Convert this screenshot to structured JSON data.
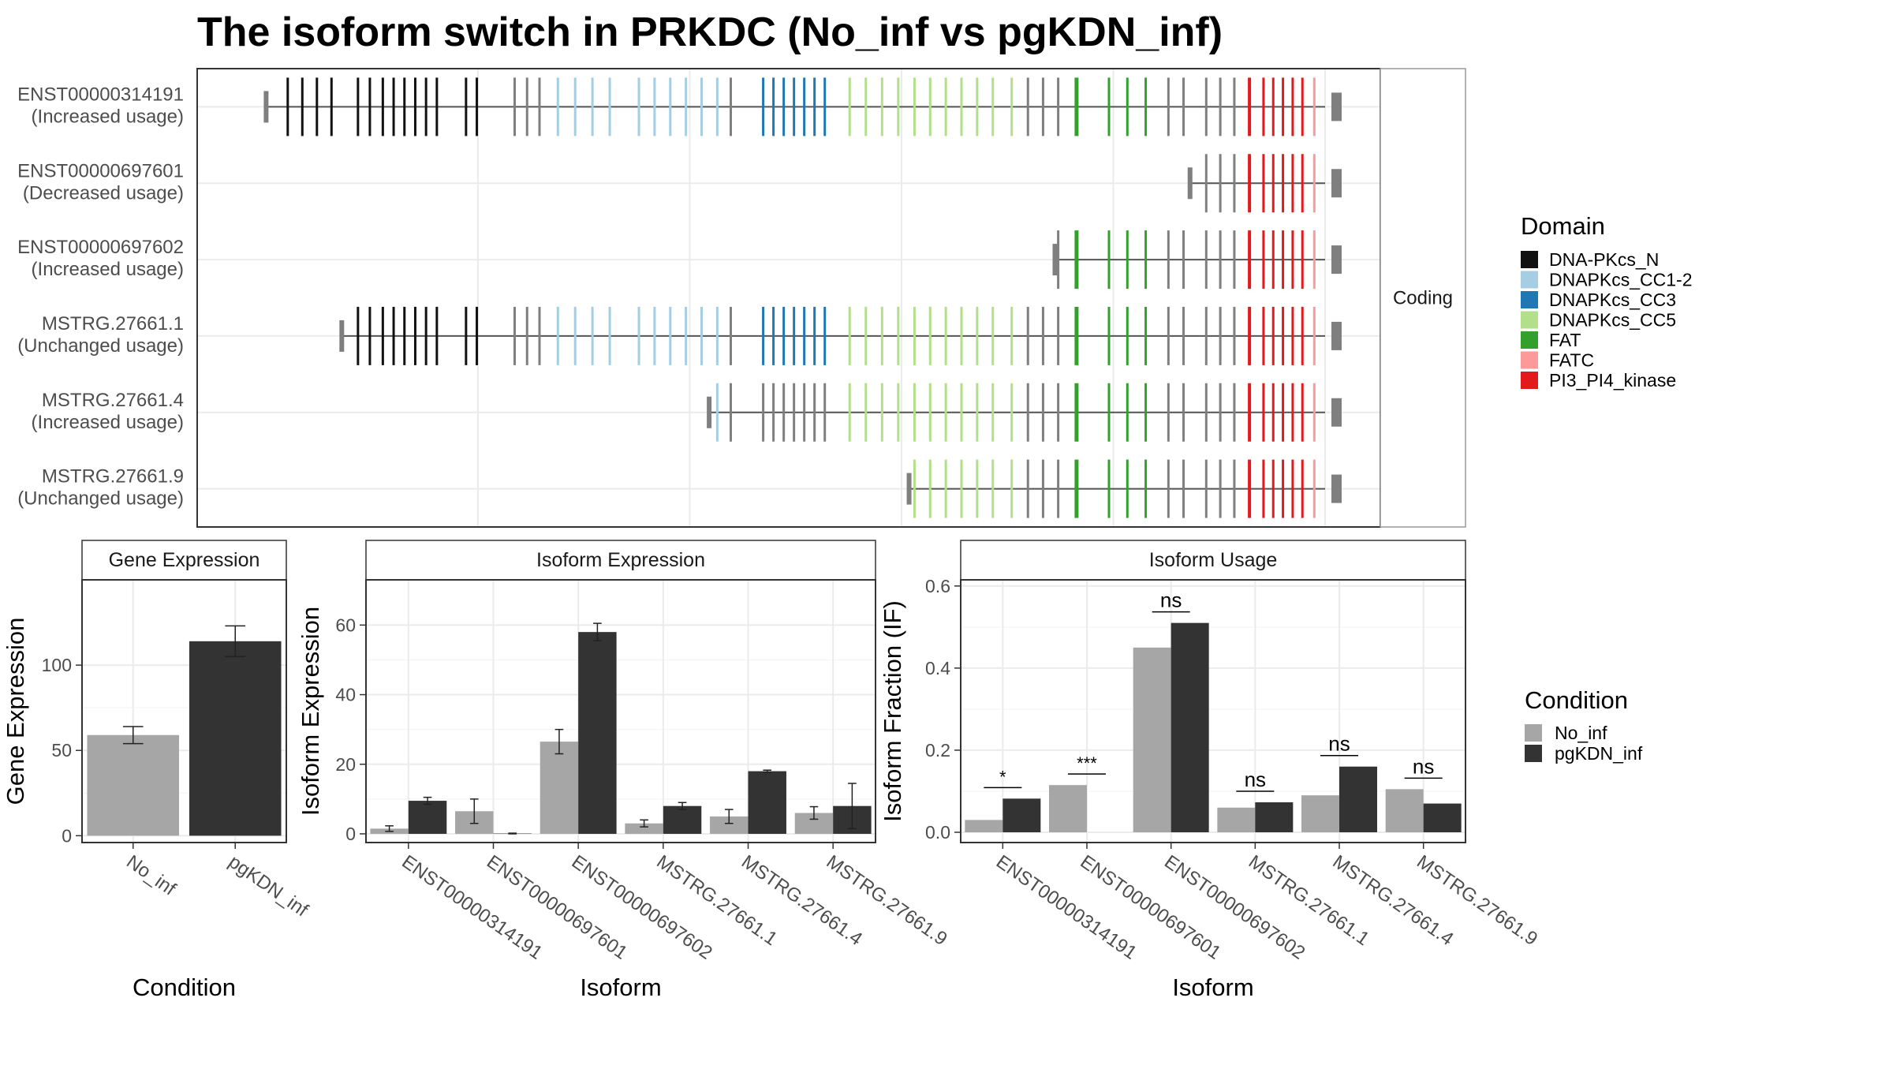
{
  "title": "The isoform switch in PRKDC (No_inf vs pgKDN_inf)",
  "colors": {
    "DNA-PKcs_N": "#111111",
    "DNAPKcs_CC1-2": "#a6cee3",
    "DNAPKcs_CC3": "#1f78b4",
    "DNAPKcs_CC5": "#b2df8a",
    "FAT": "#33a02c",
    "FATC": "#fb9a99",
    "PI3_PI4_kinase": "#e31a1c",
    "none": "#7f7f7f",
    "No_inf": "#a6a6a6",
    "pgKDN_inf": "#333333"
  },
  "structure": {
    "facet_label": "Coding",
    "domain_legend_title": "Domain",
    "domain_legend": [
      "DNA-PKcs_N",
      "DNAPKcs_CC1-2",
      "DNAPKcs_CC3",
      "DNAPKcs_CC5",
      "FAT",
      "FATC",
      "PI3_PI4_kinase"
    ],
    "isoforms": [
      {
        "id": "ENST00000314191",
        "usage": "(Increased usage)",
        "start": 2.0,
        "end": 100.0
      },
      {
        "id": "ENST00000697601",
        "usage": "(Decreased usage)",
        "start": 87.5,
        "end": 100.0
      },
      {
        "id": "ENST00000697602",
        "usage": "(Increased usage)",
        "start": 75.0,
        "end": 100.0
      },
      {
        "id": "MSTRG.27661.1",
        "usage": "(Unchanged usage)",
        "start": 9.0,
        "end": 100.0
      },
      {
        "id": "MSTRG.27661.4",
        "usage": "(Increased usage)",
        "start": 43.0,
        "end": 100.0
      },
      {
        "id": "MSTRG.27661.9",
        "usage": "(Unchanged usage)",
        "start": 61.5,
        "end": 100.0
      }
    ]
  },
  "chart_data": [
    {
      "type": "bar",
      "title": "Gene Expression",
      "xlabel": "Condition",
      "ylabel": "Gene Expression",
      "categories": [
        "No_inf",
        "pgKDN_inf"
      ],
      "values": [
        59,
        114
      ],
      "errors": [
        5,
        9
      ],
      "ylim": [
        -4,
        150
      ],
      "yticks": [
        0,
        50,
        100
      ]
    },
    {
      "type": "bar",
      "title": "Isoform Expression",
      "xlabel": "Isoform",
      "ylabel": "Isoform Expression",
      "categories": [
        "ENST00000314191",
        "ENST00000697601",
        "ENST00000697602",
        "MSTRG.27661.1",
        "MSTRG.27661.4",
        "MSTRG.27661.9"
      ],
      "series": [
        {
          "name": "No_inf",
          "values": [
            1.5,
            6.5,
            26.5,
            3.0,
            5.0,
            6.0
          ],
          "errors": [
            0.8,
            3.5,
            3.5,
            1.0,
            2.0,
            1.8
          ]
        },
        {
          "name": "pgKDN_inf",
          "values": [
            9.5,
            0.1,
            58.0,
            8.0,
            18.0,
            8.0
          ],
          "errors": [
            1.0,
            0.1,
            2.5,
            1.0,
            0.3,
            6.5
          ]
        }
      ],
      "ylim": [
        -2.5,
        73
      ],
      "yticks": [
        0,
        20,
        40,
        60
      ]
    },
    {
      "type": "bar",
      "title": "Isoform Usage",
      "xlabel": "Isoform",
      "ylabel": "Isoform Fraction (IF)",
      "categories": [
        "ENST00000314191",
        "ENST00000697601",
        "ENST00000697602",
        "MSTRG.27661.1",
        "MSTRG.27661.4",
        "MSTRG.27661.9"
      ],
      "series": [
        {
          "name": "No_inf",
          "values": [
            0.03,
            0.115,
            0.45,
            0.06,
            0.09,
            0.105
          ]
        },
        {
          "name": "pgKDN_inf",
          "values": [
            0.082,
            0.0,
            0.51,
            0.073,
            0.16,
            0.07
          ]
        }
      ],
      "significance": [
        "*",
        "***",
        "ns",
        "ns",
        "ns",
        "ns"
      ],
      "ylim": [
        -0.025,
        0.615
      ],
      "yticks": [
        0.0,
        0.2,
        0.4,
        0.6
      ],
      "ytick_labels": [
        "0.0",
        "0.2",
        "0.4",
        "0.6"
      ]
    }
  ],
  "condition_legend_title": "Condition",
  "condition_legend": [
    "No_inf",
    "pgKDN_inf"
  ]
}
